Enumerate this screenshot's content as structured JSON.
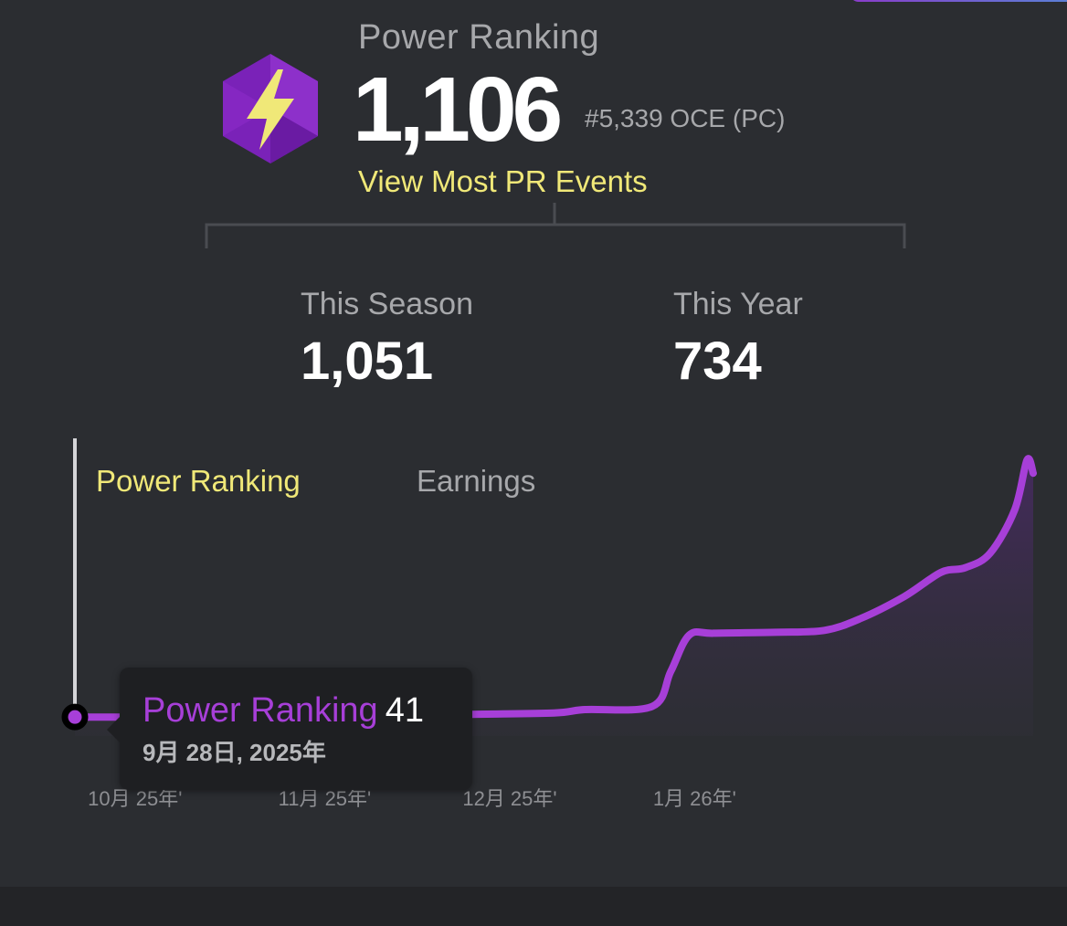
{
  "header": {
    "title": "Power Ranking",
    "value": "1,106",
    "rank": "#5,339 OCE (PC)",
    "link_label": "View Most PR Events",
    "icon": "lightning-bolt-hexagon-icon",
    "colors": {
      "accent": "#a73fd8",
      "link": "#f0e878",
      "icon_bg": "#7a22b8",
      "icon_bolt": "#f0e878"
    }
  },
  "stats": {
    "season_label": "This Season",
    "season_value": "1,051",
    "year_label": "This Year",
    "year_value": "734"
  },
  "tabs": {
    "active": "Power Ranking",
    "inactive": "Earnings"
  },
  "tooltip": {
    "series": "Power Ranking",
    "value": "41",
    "date": "9月 28日, 2025年"
  },
  "chart_data": {
    "type": "area",
    "title": "",
    "xlabel": "",
    "ylabel": "",
    "x_ticks": [
      "10月 25年'",
      "11月 25年'",
      "12月 25年'",
      "1月 26年'"
    ],
    "series": [
      {
        "name": "Power Ranking",
        "color": "#a73fd8",
        "points": [
          {
            "x": "2025-09-28",
            "y": 41
          },
          {
            "x": "2025-10-15",
            "y": 41
          },
          {
            "x": "2025-11-01",
            "y": 42
          },
          {
            "x": "2025-11-15",
            "y": 45
          },
          {
            "x": "2025-12-01",
            "y": 52
          },
          {
            "x": "2025-12-15",
            "y": 58
          },
          {
            "x": "2025-12-20",
            "y": 72
          },
          {
            "x": "2025-12-31",
            "y": 85
          },
          {
            "x": "2026-01-03",
            "y": 230
          },
          {
            "x": "2026-01-06",
            "y": 380
          },
          {
            "x": "2026-01-10",
            "y": 388
          },
          {
            "x": "2026-01-20",
            "y": 392
          },
          {
            "x": "2026-01-28",
            "y": 400
          },
          {
            "x": "2026-02-03",
            "y": 450
          },
          {
            "x": "2026-02-10",
            "y": 540
          },
          {
            "x": "2026-02-16",
            "y": 640
          },
          {
            "x": "2026-02-20",
            "y": 660
          },
          {
            "x": "2026-02-24",
            "y": 720
          },
          {
            "x": "2026-02-28",
            "y": 900
          },
          {
            "x": "2026-03-02",
            "y": 1106
          },
          {
            "x": "2026-03-03",
            "y": 1051
          }
        ]
      }
    ],
    "y_range": [
      0,
      1150
    ],
    "grid": false,
    "legend": "none"
  }
}
